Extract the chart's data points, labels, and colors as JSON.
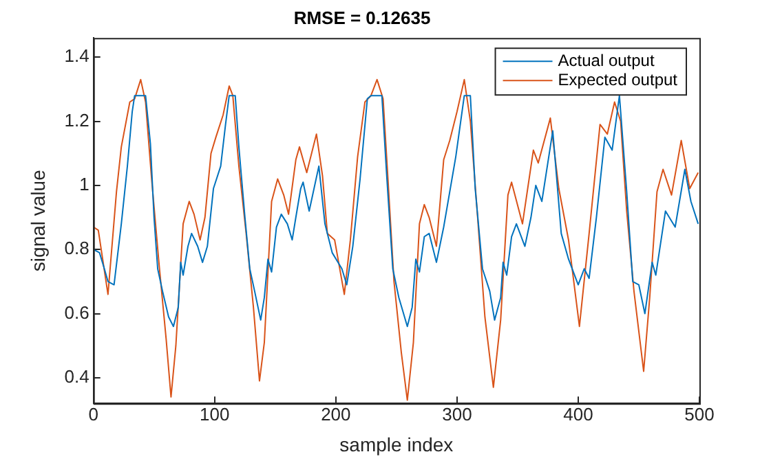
{
  "chart_data": {
    "type": "line",
    "title": "RMSE = 0.12635",
    "xlabel": "sample index",
    "ylabel": "signal value",
    "xlim": [
      0,
      500
    ],
    "xticks": [
      0,
      100,
      200,
      300,
      400,
      500
    ],
    "ylim": [
      0.32,
      1.46
    ],
    "yticks": [
      0.4,
      0.6,
      0.8,
      1,
      1.2,
      1.4
    ],
    "grid": false,
    "legend": "top right",
    "marker": "none",
    "line_style": "solid",
    "series": [
      {
        "name": "Actual output",
        "color": "#0072bd",
        "x": [
          0,
          5,
          9,
          12,
          17,
          23,
          28,
          32,
          34,
          43,
          47,
          50,
          53,
          57,
          62,
          66,
          70,
          72,
          74,
          78,
          81,
          86,
          90,
          94,
          99,
          105,
          109,
          112,
          117,
          120,
          125,
          129,
          133,
          138,
          141,
          144,
          147,
          151,
          155,
          160,
          164,
          167,
          171,
          173,
          178,
          186,
          191,
          197,
          205,
          209,
          214,
          220,
          226,
          229,
          238,
          242,
          247,
          252,
          259,
          263,
          266,
          269,
          273,
          277,
          283,
          289,
          294,
          299,
          306,
          311,
          315,
          321,
          327,
          331,
          336,
          338,
          341,
          345,
          349,
          356,
          361,
          365,
          370,
          379,
          386,
          392,
          400,
          405,
          409,
          415,
          422,
          428,
          434,
          440,
          445,
          450,
          455,
          461,
          464,
          472,
          480,
          488,
          493,
          499
        ],
        "values": [
          0.8,
          0.79,
          0.74,
          0.7,
          0.69,
          0.88,
          1.06,
          1.23,
          1.28,
          1.28,
          1.13,
          0.9,
          0.74,
          0.67,
          0.59,
          0.56,
          0.62,
          0.76,
          0.72,
          0.81,
          0.85,
          0.81,
          0.76,
          0.81,
          0.99,
          1.06,
          1.19,
          1.28,
          1.28,
          1.12,
          0.9,
          0.74,
          0.67,
          0.58,
          0.65,
          0.77,
          0.73,
          0.87,
          0.91,
          0.88,
          0.83,
          0.9,
          0.99,
          1.01,
          0.92,
          1.06,
          0.88,
          0.79,
          0.74,
          0.69,
          0.81,
          1.02,
          1.27,
          1.28,
          1.28,
          1.03,
          0.74,
          0.65,
          0.56,
          0.62,
          0.77,
          0.73,
          0.84,
          0.85,
          0.76,
          0.87,
          0.98,
          1.09,
          1.28,
          1.28,
          0.99,
          0.74,
          0.67,
          0.58,
          0.65,
          0.76,
          0.72,
          0.84,
          0.88,
          0.81,
          0.9,
          1.0,
          0.95,
          1.17,
          0.85,
          0.77,
          0.69,
          0.74,
          0.71,
          0.9,
          1.15,
          1.11,
          1.28,
          0.98,
          0.7,
          0.69,
          0.6,
          0.76,
          0.72,
          0.92,
          0.87,
          1.05,
          0.95,
          0.88
        ]
      },
      {
        "name": "Expected output",
        "color": "#d95319",
        "x": [
          0,
          4,
          12,
          19,
          23,
          30,
          34,
          39,
          43,
          48,
          54,
          60,
          64,
          68,
          74,
          79,
          83,
          88,
          92,
          97,
          101,
          107,
          112,
          115,
          120,
          126,
          132,
          137,
          141,
          147,
          152,
          157,
          161,
          167,
          170,
          176,
          184,
          189,
          193,
          199,
          207,
          212,
          218,
          224,
          229,
          234,
          239,
          243,
          248,
          254,
          259,
          264,
          269,
          273,
          277,
          283,
          289,
          294,
          300,
          306,
          311,
          317,
          323,
          330,
          336,
          342,
          345,
          354,
          363,
          367,
          377,
          384,
          392,
          401,
          409,
          418,
          424,
          430,
          435,
          440,
          446,
          454,
          459,
          465,
          470,
          477,
          485,
          492,
          499
        ],
        "values": [
          0.87,
          0.86,
          0.66,
          0.98,
          1.12,
          1.26,
          1.27,
          1.33,
          1.26,
          1.02,
          0.76,
          0.52,
          0.34,
          0.5,
          0.88,
          0.95,
          0.91,
          0.83,
          0.9,
          1.1,
          1.15,
          1.22,
          1.31,
          1.28,
          1.06,
          0.85,
          0.62,
          0.39,
          0.51,
          0.95,
          1.02,
          0.97,
          0.91,
          1.08,
          1.12,
          1.04,
          1.16,
          1.03,
          0.85,
          0.83,
          0.66,
          0.83,
          1.09,
          1.26,
          1.28,
          1.33,
          1.27,
          1.02,
          0.7,
          0.48,
          0.33,
          0.51,
          0.88,
          0.94,
          0.9,
          0.81,
          1.08,
          1.14,
          1.23,
          1.33,
          1.2,
          0.9,
          0.59,
          0.37,
          0.58,
          0.97,
          1.01,
          0.88,
          1.11,
          1.07,
          1.21,
          0.99,
          0.83,
          0.56,
          0.85,
          1.19,
          1.16,
          1.26,
          1.2,
          0.92,
          0.67,
          0.42,
          0.65,
          0.98,
          1.05,
          0.97,
          1.14,
          0.99,
          1.04
        ]
      }
    ]
  }
}
